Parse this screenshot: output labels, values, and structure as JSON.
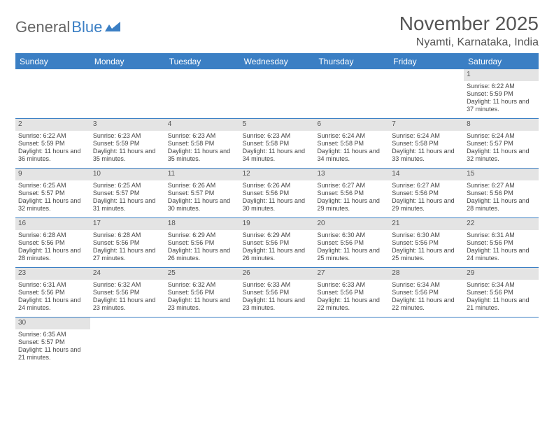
{
  "brand": {
    "part1": "General",
    "part2": "Blue"
  },
  "title": "November 2025",
  "location": "Nyamti, Karnataka, India",
  "colors": {
    "accent": "#3b7fc4",
    "daybar": "#e4e4e4",
    "text": "#555555",
    "bodytext": "#444444",
    "background": "#ffffff"
  },
  "typography": {
    "title_fontsize": 28,
    "location_fontsize": 16,
    "weekday_fontsize": 12,
    "daynum_fontsize": 10,
    "body_fontsize": 9
  },
  "weekdays": [
    "Sunday",
    "Monday",
    "Tuesday",
    "Wednesday",
    "Thursday",
    "Friday",
    "Saturday"
  ],
  "weeks": [
    [
      {
        "n": "",
        "sr": "",
        "ss": "",
        "dl": ""
      },
      {
        "n": "",
        "sr": "",
        "ss": "",
        "dl": ""
      },
      {
        "n": "",
        "sr": "",
        "ss": "",
        "dl": ""
      },
      {
        "n": "",
        "sr": "",
        "ss": "",
        "dl": ""
      },
      {
        "n": "",
        "sr": "",
        "ss": "",
        "dl": ""
      },
      {
        "n": "",
        "sr": "",
        "ss": "",
        "dl": ""
      },
      {
        "n": "1",
        "sr": "Sunrise: 6:22 AM",
        "ss": "Sunset: 5:59 PM",
        "dl": "Daylight: 11 hours and 37 minutes."
      }
    ],
    [
      {
        "n": "2",
        "sr": "Sunrise: 6:22 AM",
        "ss": "Sunset: 5:59 PM",
        "dl": "Daylight: 11 hours and 36 minutes."
      },
      {
        "n": "3",
        "sr": "Sunrise: 6:23 AM",
        "ss": "Sunset: 5:59 PM",
        "dl": "Daylight: 11 hours and 35 minutes."
      },
      {
        "n": "4",
        "sr": "Sunrise: 6:23 AM",
        "ss": "Sunset: 5:58 PM",
        "dl": "Daylight: 11 hours and 35 minutes."
      },
      {
        "n": "5",
        "sr": "Sunrise: 6:23 AM",
        "ss": "Sunset: 5:58 PM",
        "dl": "Daylight: 11 hours and 34 minutes."
      },
      {
        "n": "6",
        "sr": "Sunrise: 6:24 AM",
        "ss": "Sunset: 5:58 PM",
        "dl": "Daylight: 11 hours and 34 minutes."
      },
      {
        "n": "7",
        "sr": "Sunrise: 6:24 AM",
        "ss": "Sunset: 5:58 PM",
        "dl": "Daylight: 11 hours and 33 minutes."
      },
      {
        "n": "8",
        "sr": "Sunrise: 6:24 AM",
        "ss": "Sunset: 5:57 PM",
        "dl": "Daylight: 11 hours and 32 minutes."
      }
    ],
    [
      {
        "n": "9",
        "sr": "Sunrise: 6:25 AM",
        "ss": "Sunset: 5:57 PM",
        "dl": "Daylight: 11 hours and 32 minutes."
      },
      {
        "n": "10",
        "sr": "Sunrise: 6:25 AM",
        "ss": "Sunset: 5:57 PM",
        "dl": "Daylight: 11 hours and 31 minutes."
      },
      {
        "n": "11",
        "sr": "Sunrise: 6:26 AM",
        "ss": "Sunset: 5:57 PM",
        "dl": "Daylight: 11 hours and 30 minutes."
      },
      {
        "n": "12",
        "sr": "Sunrise: 6:26 AM",
        "ss": "Sunset: 5:56 PM",
        "dl": "Daylight: 11 hours and 30 minutes."
      },
      {
        "n": "13",
        "sr": "Sunrise: 6:27 AM",
        "ss": "Sunset: 5:56 PM",
        "dl": "Daylight: 11 hours and 29 minutes."
      },
      {
        "n": "14",
        "sr": "Sunrise: 6:27 AM",
        "ss": "Sunset: 5:56 PM",
        "dl": "Daylight: 11 hours and 29 minutes."
      },
      {
        "n": "15",
        "sr": "Sunrise: 6:27 AM",
        "ss": "Sunset: 5:56 PM",
        "dl": "Daylight: 11 hours and 28 minutes."
      }
    ],
    [
      {
        "n": "16",
        "sr": "Sunrise: 6:28 AM",
        "ss": "Sunset: 5:56 PM",
        "dl": "Daylight: 11 hours and 28 minutes."
      },
      {
        "n": "17",
        "sr": "Sunrise: 6:28 AM",
        "ss": "Sunset: 5:56 PM",
        "dl": "Daylight: 11 hours and 27 minutes."
      },
      {
        "n": "18",
        "sr": "Sunrise: 6:29 AM",
        "ss": "Sunset: 5:56 PM",
        "dl": "Daylight: 11 hours and 26 minutes."
      },
      {
        "n": "19",
        "sr": "Sunrise: 6:29 AM",
        "ss": "Sunset: 5:56 PM",
        "dl": "Daylight: 11 hours and 26 minutes."
      },
      {
        "n": "20",
        "sr": "Sunrise: 6:30 AM",
        "ss": "Sunset: 5:56 PM",
        "dl": "Daylight: 11 hours and 25 minutes."
      },
      {
        "n": "21",
        "sr": "Sunrise: 6:30 AM",
        "ss": "Sunset: 5:56 PM",
        "dl": "Daylight: 11 hours and 25 minutes."
      },
      {
        "n": "22",
        "sr": "Sunrise: 6:31 AM",
        "ss": "Sunset: 5:56 PM",
        "dl": "Daylight: 11 hours and 24 minutes."
      }
    ],
    [
      {
        "n": "23",
        "sr": "Sunrise: 6:31 AM",
        "ss": "Sunset: 5:56 PM",
        "dl": "Daylight: 11 hours and 24 minutes."
      },
      {
        "n": "24",
        "sr": "Sunrise: 6:32 AM",
        "ss": "Sunset: 5:56 PM",
        "dl": "Daylight: 11 hours and 23 minutes."
      },
      {
        "n": "25",
        "sr": "Sunrise: 6:32 AM",
        "ss": "Sunset: 5:56 PM",
        "dl": "Daylight: 11 hours and 23 minutes."
      },
      {
        "n": "26",
        "sr": "Sunrise: 6:33 AM",
        "ss": "Sunset: 5:56 PM",
        "dl": "Daylight: 11 hours and 23 minutes."
      },
      {
        "n": "27",
        "sr": "Sunrise: 6:33 AM",
        "ss": "Sunset: 5:56 PM",
        "dl": "Daylight: 11 hours and 22 minutes."
      },
      {
        "n": "28",
        "sr": "Sunrise: 6:34 AM",
        "ss": "Sunset: 5:56 PM",
        "dl": "Daylight: 11 hours and 22 minutes."
      },
      {
        "n": "29",
        "sr": "Sunrise: 6:34 AM",
        "ss": "Sunset: 5:56 PM",
        "dl": "Daylight: 11 hours and 21 minutes."
      }
    ],
    [
      {
        "n": "30",
        "sr": "Sunrise: 6:35 AM",
        "ss": "Sunset: 5:57 PM",
        "dl": "Daylight: 11 hours and 21 minutes."
      },
      {
        "n": "",
        "sr": "",
        "ss": "",
        "dl": ""
      },
      {
        "n": "",
        "sr": "",
        "ss": "",
        "dl": ""
      },
      {
        "n": "",
        "sr": "",
        "ss": "",
        "dl": ""
      },
      {
        "n": "",
        "sr": "",
        "ss": "",
        "dl": ""
      },
      {
        "n": "",
        "sr": "",
        "ss": "",
        "dl": ""
      },
      {
        "n": "",
        "sr": "",
        "ss": "",
        "dl": ""
      }
    ]
  ]
}
